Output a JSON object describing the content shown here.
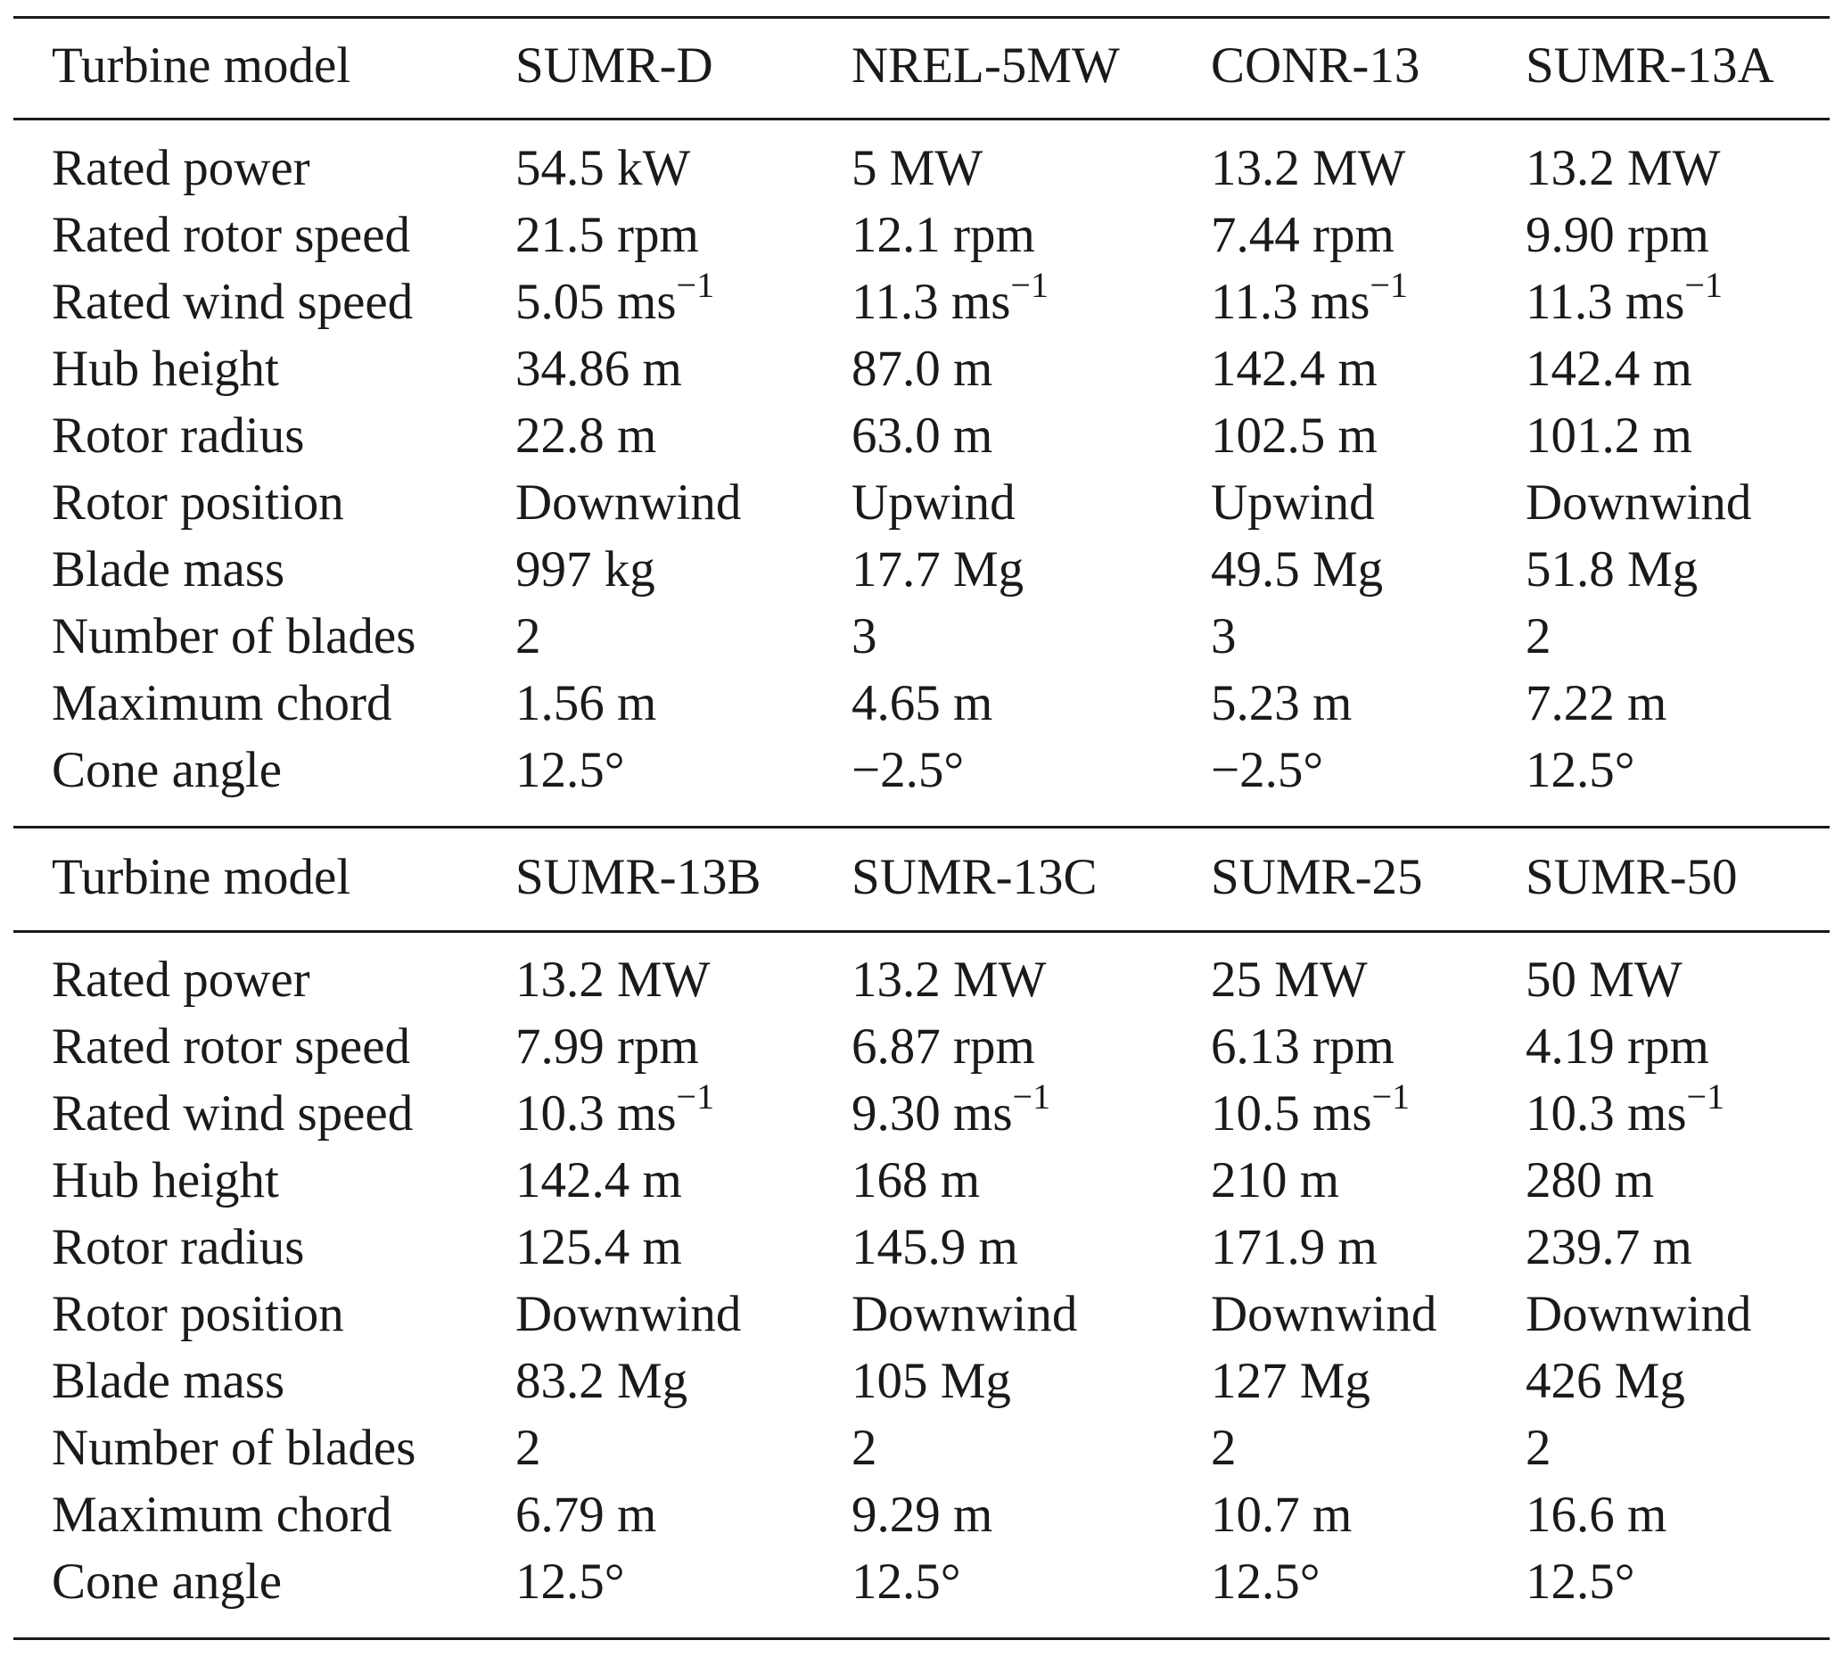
{
  "table": {
    "header_label": "Turbine model",
    "sections": [
      {
        "models": [
          "SUMR-D",
          "NREL-5MW",
          "CONR-13",
          "SUMR-13A"
        ],
        "rows": [
          {
            "label": "Rated power",
            "values": [
              "54.5 kW",
              "5 MW",
              "13.2 MW",
              "13.2 MW"
            ]
          },
          {
            "label": "Rated rotor speed",
            "values": [
              "21.5 rpm",
              "12.1 rpm",
              "7.44 rpm",
              "9.90 rpm"
            ]
          },
          {
            "label": "Rated wind speed",
            "values": [
              "5.05 ms",
              "11.3 ms",
              "11.3 ms",
              "11.3 ms"
            ],
            "sup": "−1"
          },
          {
            "label": "Hub height",
            "values": [
              "34.86 m",
              "87.0 m",
              "142.4 m",
              "142.4 m"
            ]
          },
          {
            "label": "Rotor radius",
            "values": [
              "22.8 m",
              "63.0 m",
              "102.5 m",
              "101.2 m"
            ]
          },
          {
            "label": "Rotor position",
            "values": [
              "Downwind",
              "Upwind",
              "Upwind",
              "Downwind"
            ]
          },
          {
            "label": "Blade mass",
            "values": [
              "997 kg",
              "17.7 Mg",
              "49.5 Mg",
              "51.8 Mg"
            ]
          },
          {
            "label": "Number of blades",
            "values": [
              "2",
              "3",
              "3",
              "2"
            ]
          },
          {
            "label": "Maximum chord",
            "values": [
              "1.56 m",
              "4.65 m",
              "5.23 m",
              "7.22 m"
            ]
          },
          {
            "label": "Cone angle",
            "values": [
              "12.5°",
              "−2.5°",
              "−2.5°",
              "12.5°"
            ]
          }
        ]
      },
      {
        "models": [
          "SUMR-13B",
          "SUMR-13C",
          "SUMR-25",
          "SUMR-50"
        ],
        "rows": [
          {
            "label": "Rated power",
            "values": [
              "13.2 MW",
              "13.2 MW",
              "25 MW",
              "50 MW"
            ]
          },
          {
            "label": "Rated rotor speed",
            "values": [
              "7.99 rpm",
              "6.87 rpm",
              "6.13 rpm",
              "4.19 rpm"
            ]
          },
          {
            "label": "Rated wind speed",
            "values": [
              "10.3 ms",
              "9.30 ms",
              "10.5 ms",
              "10.3 ms"
            ],
            "sup": "−1"
          },
          {
            "label": "Hub height",
            "values": [
              "142.4 m",
              "168 m",
              "210 m",
              "280 m"
            ]
          },
          {
            "label": "Rotor radius",
            "values": [
              "125.4 m",
              "145.9 m",
              "171.9 m",
              "239.7 m"
            ]
          },
          {
            "label": "Rotor position",
            "values": [
              "Downwind",
              "Downwind",
              "Downwind",
              "Downwind"
            ]
          },
          {
            "label": "Blade mass",
            "values": [
              "83.2 Mg",
              "105 Mg",
              "127 Mg",
              "426 Mg"
            ]
          },
          {
            "label": "Number of blades",
            "values": [
              "2",
              "2",
              "2",
              "2"
            ]
          },
          {
            "label": "Maximum chord",
            "values": [
              "6.79 m",
              "9.29 m",
              "10.7 m",
              "16.6 m"
            ]
          },
          {
            "label": "Cone angle",
            "values": [
              "12.5°",
              "12.5°",
              "12.5°",
              "12.5°"
            ]
          }
        ]
      }
    ]
  }
}
